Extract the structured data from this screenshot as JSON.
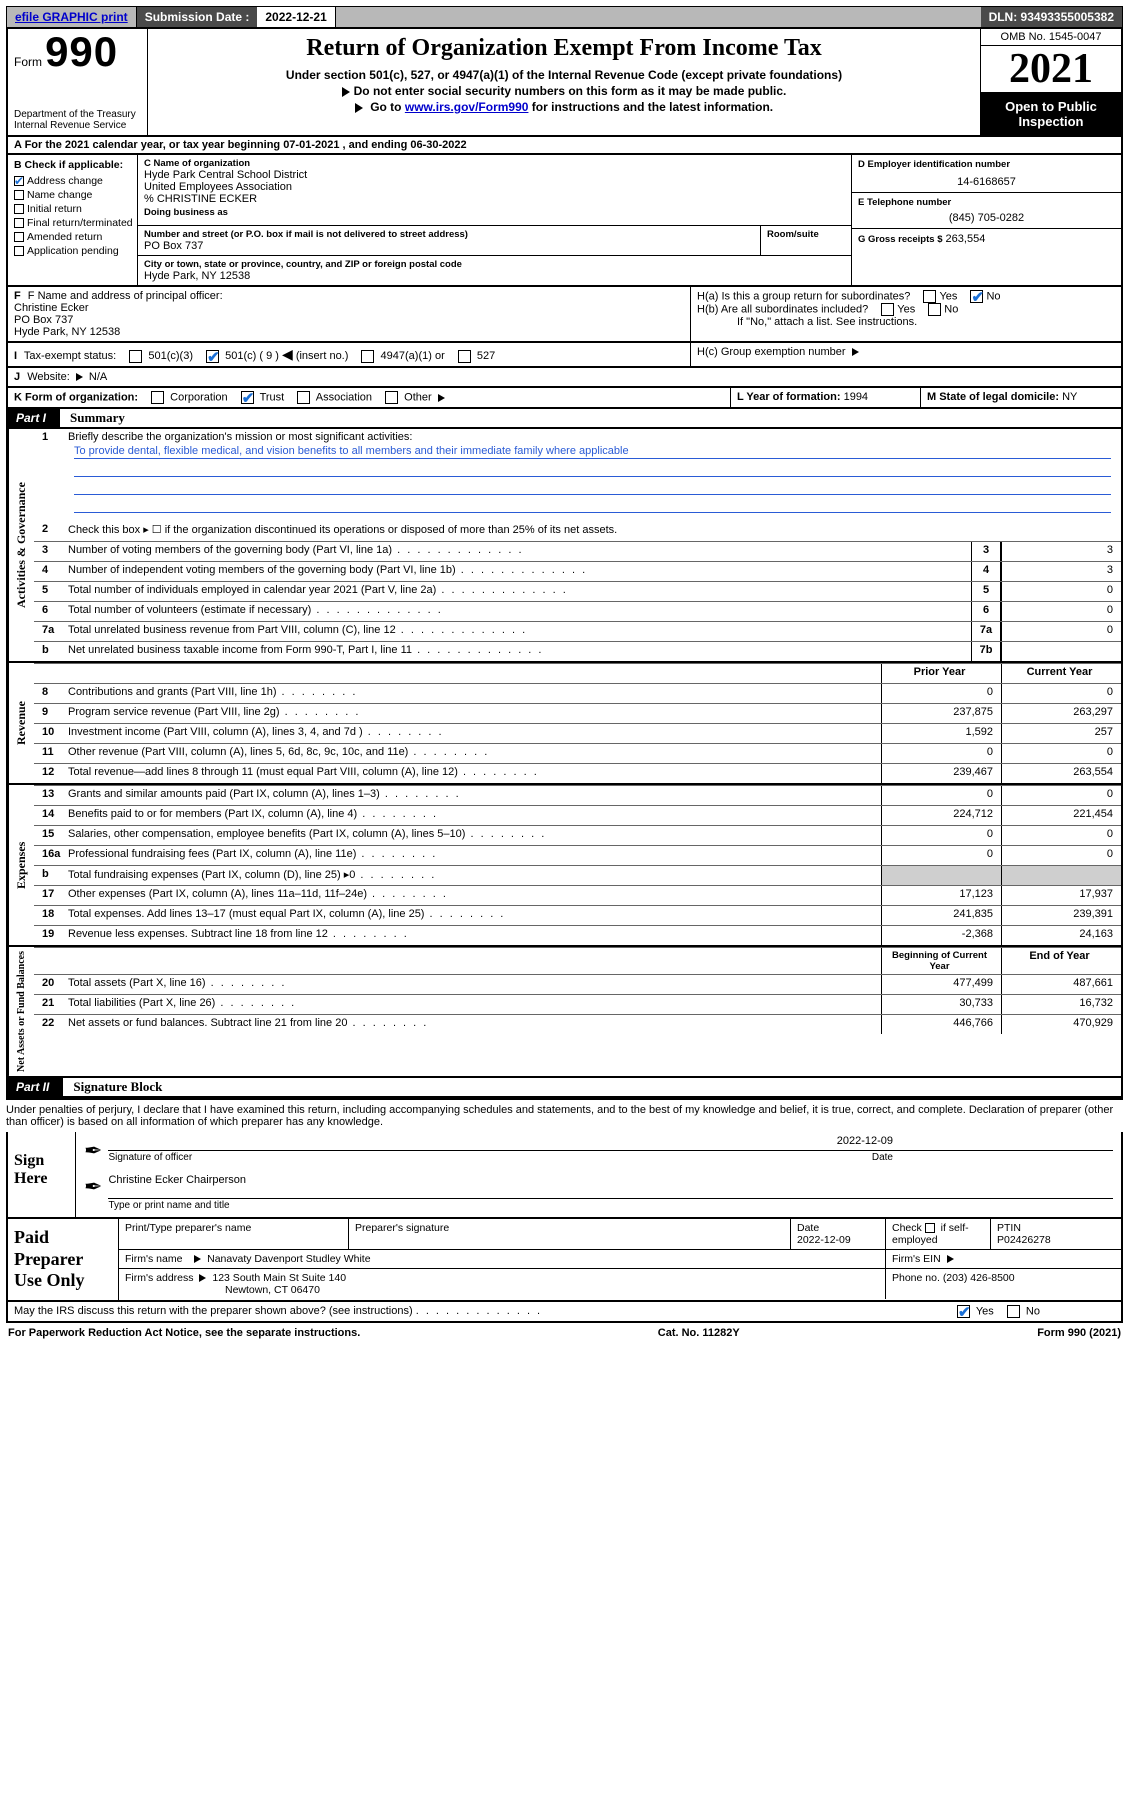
{
  "topbar": {
    "efile": "efile GRAPHIC print",
    "subdate_label": "Submission Date : 2022-12-21",
    "dln": "DLN: 93493355005382"
  },
  "header": {
    "form_word": "Form",
    "form_num": "990",
    "dept": "Department of the Treasury Internal Revenue Service",
    "title": "Return of Organization Exempt From Income Tax",
    "sub1": "Under section 501(c), 527, or 4947(a)(1) of the Internal Revenue Code (except private foundations)",
    "sub2": "Do not enter social security numbers on this form as it may be made public.",
    "sub3_pre": "Go to ",
    "sub3_link": "www.irs.gov/Form990",
    "sub3_post": " for instructions and the latest information.",
    "omb": "OMB No. 1545-0047",
    "year": "2021",
    "open": "Open to Public Inspection"
  },
  "rowA": "A For the 2021 calendar year, or tax year beginning 07-01-2021   , and ending 06-30-2022",
  "colB": {
    "label": "B Check if applicable:",
    "items": [
      {
        "label": "Address change",
        "checked": true
      },
      {
        "label": "Name change",
        "checked": false
      },
      {
        "label": "Initial return",
        "checked": false
      },
      {
        "label": "Final return/terminated",
        "checked": false
      },
      {
        "label": "Amended return",
        "checked": false
      },
      {
        "label": "Application pending",
        "checked": false
      }
    ]
  },
  "sectionC": {
    "label": "C Name of organization",
    "name1": "Hyde Park Central School District",
    "name2": "United Employees Association",
    "care": "% CHRISTINE ECKER",
    "dba_label": "Doing business as",
    "addr_label": "Number and street (or P.O. box if mail is not delivered to street address)",
    "room_label": "Room/suite",
    "addr": "PO Box 737",
    "city_label": "City or town, state or province, country, and ZIP or foreign postal code",
    "city": "Hyde Park, NY  12538"
  },
  "sectionD": {
    "label": "D Employer identification number",
    "value": "14-6168657"
  },
  "sectionE": {
    "label": "E Telephone number",
    "value": "(845) 705-0282"
  },
  "sectionG": {
    "label": "G Gross receipts $",
    "value": "263,554"
  },
  "sectionF": {
    "label": "F  Name and address of principal officer:",
    "name": "Christine Ecker",
    "addr1": "PO Box 737",
    "addr2": "Hyde Park, NY  12538"
  },
  "sectionH": {
    "a": "H(a)  Is this a group return for subordinates?",
    "b": "H(b)  Are all subordinates included?",
    "note": "If \"No,\" attach a list. See instructions.",
    "c_label": "H(c)  Group exemption number",
    "a_yes": false,
    "a_no": true,
    "b_yes": false,
    "b_no": false
  },
  "rowI": {
    "label": "Tax-exempt status:",
    "opts": {
      "c3": "501(c)(3)",
      "c_other_pre": "501(c) ( 9 )",
      "c_other_post": "(insert no.)",
      "a4947": "4947(a)(1) or",
      "s527": "527"
    },
    "checked": "c_other"
  },
  "rowJ": {
    "label": "Website:",
    "value": "N/A"
  },
  "rowK": {
    "label": "K Form of organization:",
    "opts": [
      "Corporation",
      "Trust",
      "Association",
      "Other"
    ],
    "checked": "Trust"
  },
  "rowL": {
    "label": "L Year of formation:",
    "value": "1994"
  },
  "rowM": {
    "label": "M State of legal domicile:",
    "value": "NY"
  },
  "part1": {
    "hdr": "Part I",
    "title": "Summary",
    "q1": "Briefly describe the organization's mission or most significant activities:",
    "mission": "To provide dental, flexible medical, and vision benefits to all members and their immediate family where applicable",
    "q2": "Check this box ▸ ☐  if the organization discontinued its operations or disposed of more than 25% of its net assets.",
    "lines_top": [
      {
        "n": "3",
        "desc": "Number of voting members of the governing body (Part VI, line 1a)",
        "box": "3",
        "val": "3"
      },
      {
        "n": "4",
        "desc": "Number of independent voting members of the governing body (Part VI, line 1b)",
        "box": "4",
        "val": "3"
      },
      {
        "n": "5",
        "desc": "Total number of individuals employed in calendar year 2021 (Part V, line 2a)",
        "box": "5",
        "val": "0"
      },
      {
        "n": "6",
        "desc": "Total number of volunteers (estimate if necessary)",
        "box": "6",
        "val": "0"
      },
      {
        "n": "7a",
        "desc": "Total unrelated business revenue from Part VIII, column (C), line 12",
        "box": "7a",
        "val": "0"
      },
      {
        "n": "b",
        "desc": "Net unrelated business taxable income from Form 990-T, Part I, line 11",
        "box": "7b",
        "val": ""
      }
    ],
    "year_hdr": {
      "prior": "Prior Year",
      "current": "Current Year"
    },
    "revenue": [
      {
        "n": "8",
        "desc": "Contributions and grants (Part VIII, line 1h)",
        "p": "0",
        "c": "0"
      },
      {
        "n": "9",
        "desc": "Program service revenue (Part VIII, line 2g)",
        "p": "237,875",
        "c": "263,297"
      },
      {
        "n": "10",
        "desc": "Investment income (Part VIII, column (A), lines 3, 4, and 7d )",
        "p": "1,592",
        "c": "257"
      },
      {
        "n": "11",
        "desc": "Other revenue (Part VIII, column (A), lines 5, 6d, 8c, 9c, 10c, and 11e)",
        "p": "0",
        "c": "0"
      },
      {
        "n": "12",
        "desc": "Total revenue—add lines 8 through 11 (must equal Part VIII, column (A), line 12)",
        "p": "239,467",
        "c": "263,554"
      }
    ],
    "expenses": [
      {
        "n": "13",
        "desc": "Grants and similar amounts paid (Part IX, column (A), lines 1–3)",
        "p": "0",
        "c": "0"
      },
      {
        "n": "14",
        "desc": "Benefits paid to or for members (Part IX, column (A), line 4)",
        "p": "224,712",
        "c": "221,454"
      },
      {
        "n": "15",
        "desc": "Salaries, other compensation, employee benefits (Part IX, column (A), lines 5–10)",
        "p": "0",
        "c": "0"
      },
      {
        "n": "16a",
        "desc": "Professional fundraising fees (Part IX, column (A), line 11e)",
        "p": "0",
        "c": "0"
      },
      {
        "n": "b",
        "desc": "Total fundraising expenses (Part IX, column (D), line 25) ▸0",
        "p": "",
        "c": "",
        "shade": true
      },
      {
        "n": "17",
        "desc": "Other expenses (Part IX, column (A), lines 11a–11d, 11f–24e)",
        "p": "17,123",
        "c": "17,937"
      },
      {
        "n": "18",
        "desc": "Total expenses. Add lines 13–17 (must equal Part IX, column (A), line 25)",
        "p": "241,835",
        "c": "239,391"
      },
      {
        "n": "19",
        "desc": "Revenue less expenses. Subtract line 18 from line 12",
        "p": "-2,368",
        "c": "24,163"
      }
    ],
    "net_hdr": {
      "begin": "Beginning of Current Year",
      "end": "End of Year"
    },
    "net": [
      {
        "n": "20",
        "desc": "Total assets (Part X, line 16)",
        "p": "477,499",
        "c": "487,661"
      },
      {
        "n": "21",
        "desc": "Total liabilities (Part X, line 26)",
        "p": "30,733",
        "c": "16,732"
      },
      {
        "n": "22",
        "desc": "Net assets or fund balances. Subtract line 21 from line 20",
        "p": "446,766",
        "c": "470,929"
      }
    ],
    "vtabs": {
      "gov": "Activities & Governance",
      "rev": "Revenue",
      "exp": "Expenses",
      "net": "Net Assets or Fund Balances"
    }
  },
  "part2": {
    "hdr": "Part II",
    "title": "Signature Block",
    "penalty": "Under penalties of perjury, I declare that I have examined this return, including accompanying schedules and statements, and to the best of my knowledge and belief, it is true, correct, and complete. Declaration of preparer (other than officer) is based on all information of which preparer has any knowledge."
  },
  "sign": {
    "here": "Sign Here",
    "sig_label": "Signature of officer",
    "date_label": "Date",
    "date": "2022-12-09",
    "name": "Christine Ecker Chairperson",
    "name_label": "Type or print name and title"
  },
  "prep": {
    "title": "Paid Preparer Use Only",
    "h1": "Print/Type preparer's name",
    "h2": "Preparer's signature",
    "h3": "Date",
    "date": "2022-12-09",
    "h4_pre": "Check",
    "h4_post": "if self-employed",
    "h4_checked": false,
    "h5": "PTIN",
    "ptin": "P02426278",
    "firm_label": "Firm's name",
    "firm": "Nanavaty Davenport Studley White",
    "ein_label": "Firm's EIN",
    "addr_label": "Firm's address",
    "addr": "123 South Main St Suite 140",
    "addr2": "Newtown, CT  06470",
    "phone_label": "Phone no.",
    "phone": "(203) 426-8500"
  },
  "discuss": {
    "q": "May the IRS discuss this return with the preparer shown above? (see instructions)",
    "yes": true,
    "no": false
  },
  "footer": {
    "left": "For Paperwork Reduction Act Notice, see the separate instructions.",
    "mid": "Cat. No. 11282Y",
    "right": "Form 990 (2021)"
  }
}
